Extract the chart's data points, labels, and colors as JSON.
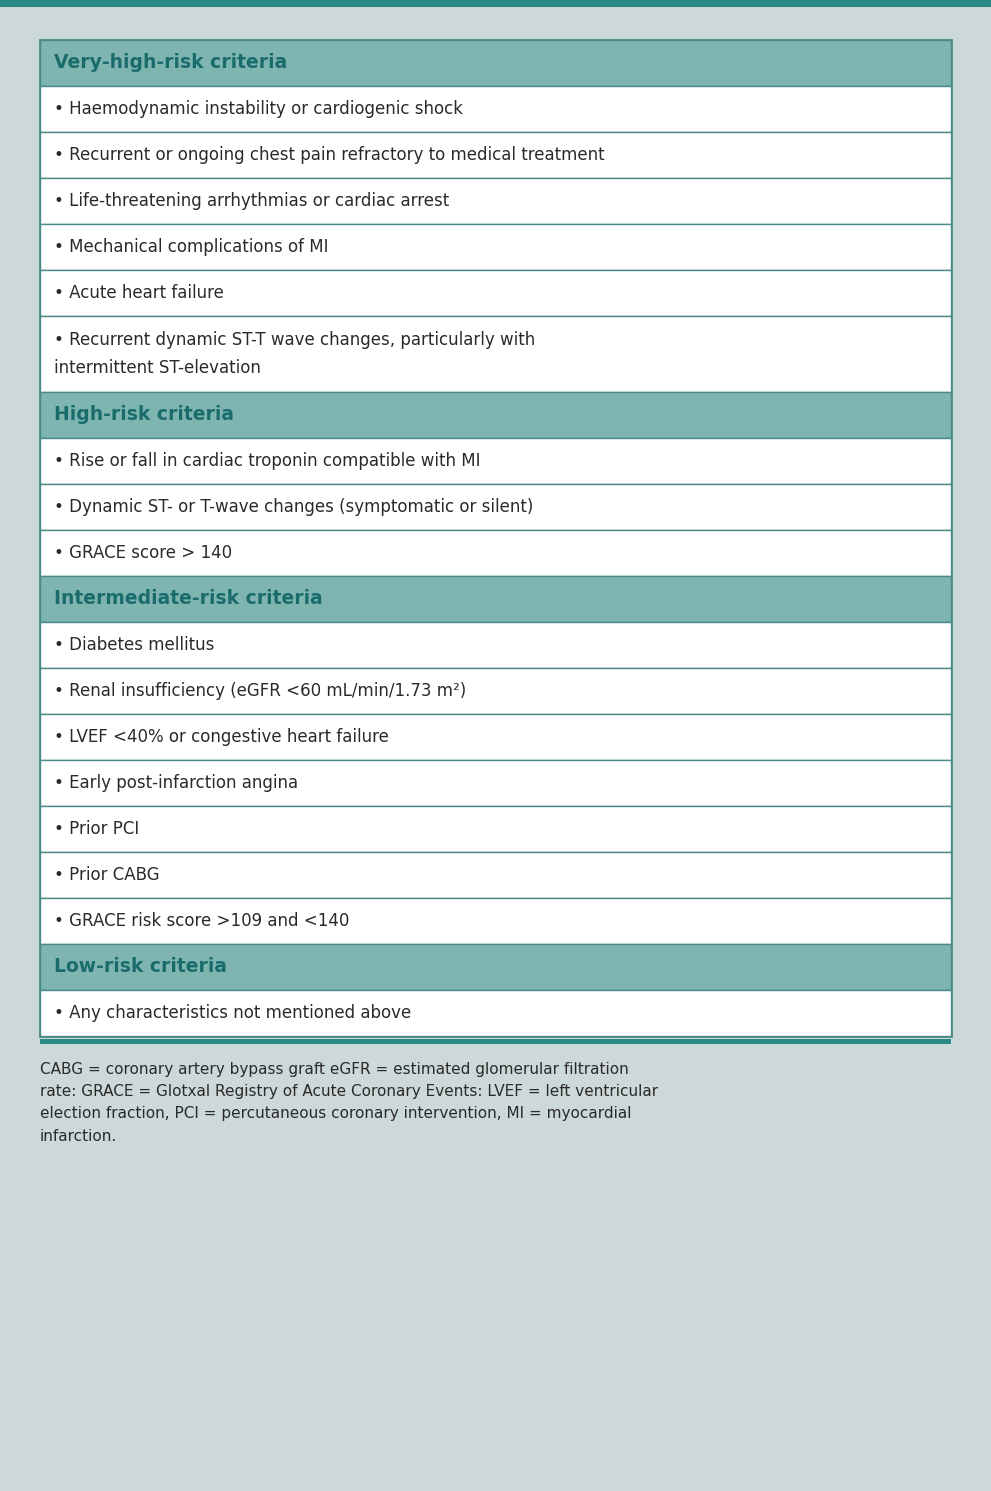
{
  "bg_color": "#cdd8d8",
  "table_bg": "#ffffff",
  "header_bg": "#7fb5b0",
  "header_text_color": "#1a6b6b",
  "cell_text_color": "#2a2a2a",
  "border_color": "#4a8a85",
  "top_bar_color": "#2a8a85",
  "sections": [
    {
      "header": "Very-high-risk criteria",
      "items": [
        "• Haemodynamic instability or cardiogenic shock",
        "• Recurrent or ongoing chest pain refractory to medical treatment",
        "• Life-threatening arrhythmias or cardiac arrest",
        "• Mechanical complications of MI",
        "• Acute heart failure",
        "• Recurrent dynamic ST-T wave changes, particularly with\n  intermittent ST-elevation"
      ]
    },
    {
      "header": "High-risk criteria",
      "items": [
        "• Rise or fall in cardiac troponin compatible with MI",
        "• Dynamic ST- or T-wave changes (symptomatic or silent)",
        "• GRACE score > 140"
      ]
    },
    {
      "header": "Intermediate-risk criteria",
      "items": [
        "• Diabetes mellitus",
        "• Renal insufficiency (eGFR <60 mL/min/1.73 m²)",
        "• LVEF <40% or congestive heart failure",
        "• Early post-infarction angina",
        "• Prior PCI",
        "• Prior CABG",
        "• GRACE risk score >109 and <140"
      ]
    },
    {
      "header": "Low-risk criteria",
      "items": [
        "• Any characteristics not mentioned above"
      ]
    }
  ],
  "footnote": "CABG = coronary artery bypass graft eGFR = estimated glomerular filtration\nrate: GRACE = Glotxal Registry of Acute Coronary Events: LVEF = left ventricular\nelection fraction, PCI = percutaneous coronary intervention, MI = myocardial\ninfarction.",
  "fig_width": 9.91,
  "fig_height": 14.91,
  "dpi": 100
}
